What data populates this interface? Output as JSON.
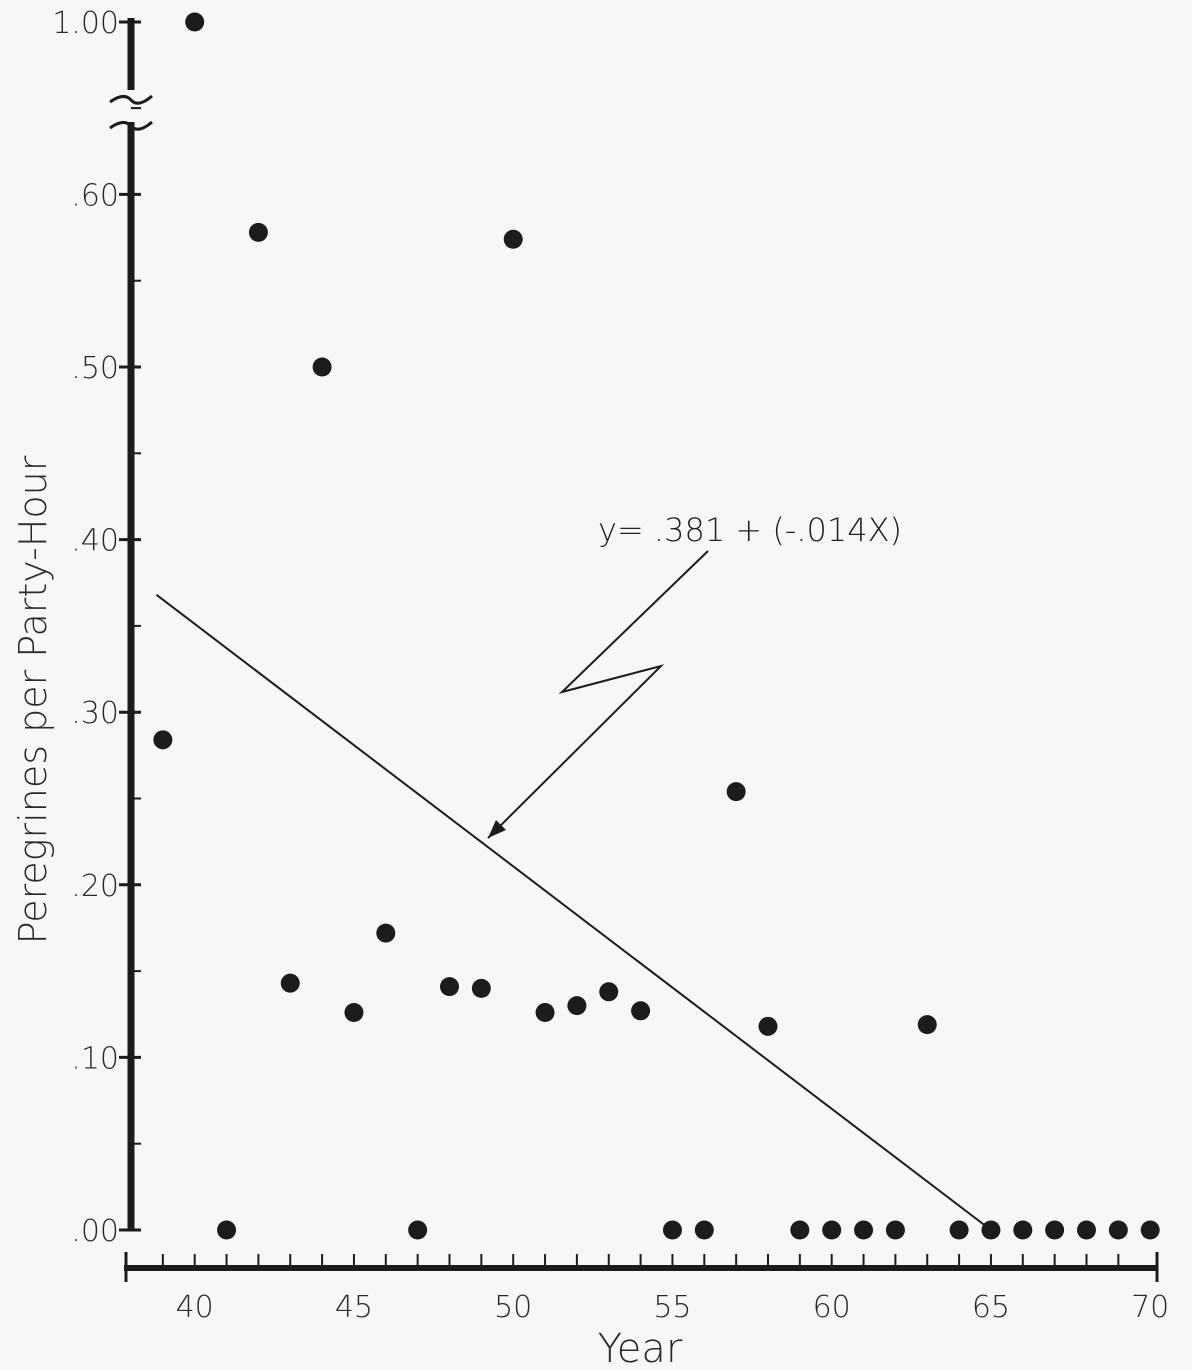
{
  "chart_data": {
    "type": "scatter",
    "title": "",
    "xlabel": "Year",
    "ylabel": "Peregrines per Party-Hour",
    "xlim": [
      38,
      70
    ],
    "ylim": [
      0,
      1.0
    ],
    "y_axis_break": [
      0.65,
      1.0
    ],
    "grid": false,
    "x_ticks": [
      {
        "value": 40,
        "label": "40"
      },
      {
        "value": 45,
        "label": "45"
      },
      {
        "value": 50,
        "label": "50"
      },
      {
        "value": 55,
        "label": "55"
      },
      {
        "value": 60,
        "label": "60"
      },
      {
        "value": 65,
        "label": "65"
      },
      {
        "value": 70,
        "label": "70"
      }
    ],
    "y_ticks": [
      {
        "value": 0.0,
        "label": ".00"
      },
      {
        "value": 0.1,
        "label": ".10"
      },
      {
        "value": 0.2,
        "label": ".20"
      },
      {
        "value": 0.3,
        "label": ".30"
      },
      {
        "value": 0.4,
        "label": ".40"
      },
      {
        "value": 0.5,
        "label": ".50"
      },
      {
        "value": 0.6,
        "label": ".60"
      },
      {
        "value": 1.0,
        "label": "1.00"
      }
    ],
    "series": [
      {
        "points": [
          {
            "x": 39,
            "y": 0.284
          },
          {
            "x": 40,
            "y": 1.0
          },
          {
            "x": 41,
            "y": 0.0
          },
          {
            "x": 42,
            "y": 0.578
          },
          {
            "x": 43,
            "y": 0.143
          },
          {
            "x": 44,
            "y": 0.5
          },
          {
            "x": 45,
            "y": 0.126
          },
          {
            "x": 46,
            "y": 0.172
          },
          {
            "x": 47,
            "y": 0.0
          },
          {
            "x": 48,
            "y": 0.141
          },
          {
            "x": 49,
            "y": 0.14
          },
          {
            "x": 50,
            "y": 0.574
          },
          {
            "x": 51,
            "y": 0.126
          },
          {
            "x": 52,
            "y": 0.13
          },
          {
            "x": 53,
            "y": 0.138
          },
          {
            "x": 54,
            "y": 0.127
          },
          {
            "x": 55,
            "y": 0.0
          },
          {
            "x": 56,
            "y": 0.0
          },
          {
            "x": 57,
            "y": 0.254
          },
          {
            "x": 58,
            "y": 0.118
          },
          {
            "x": 59,
            "y": 0.0
          },
          {
            "x": 60,
            "y": 0.0
          },
          {
            "x": 61,
            "y": 0.0
          },
          {
            "x": 62,
            "y": 0.0
          },
          {
            "x": 63,
            "y": 0.119
          },
          {
            "x": 64,
            "y": 0.0
          },
          {
            "x": 65,
            "y": 0.0
          },
          {
            "x": 66,
            "y": 0.0
          },
          {
            "x": 67,
            "y": 0.0
          },
          {
            "x": 68,
            "y": 0.0
          },
          {
            "x": 69,
            "y": 0.0
          },
          {
            "x": 70,
            "y": 0.0
          }
        ]
      }
    ],
    "regression_line": {
      "x_start": 38.8,
      "y_start": 0.368,
      "x_end": 65,
      "y_end": 0.0
    },
    "annotation": "y= .381 + (-.014X)",
    "colors": {
      "points": "#1c1c1c",
      "line": "#1c1c1c",
      "background": "#f7f7f5"
    }
  }
}
